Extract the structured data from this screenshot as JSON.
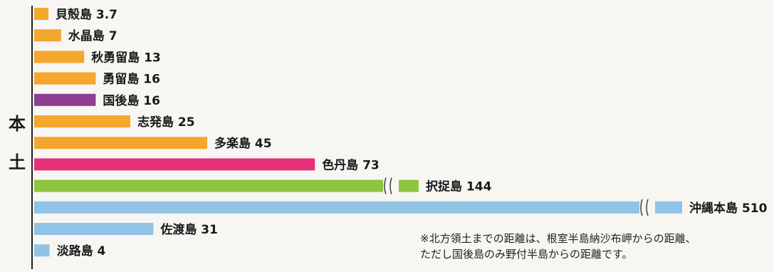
{
  "chart_data": {
    "type": "bar",
    "orientation": "horizontal",
    "axis_label": [
      "本",
      "土"
    ],
    "categories": [
      "貝殻島",
      "水晶島",
      "秋勇留島",
      "勇留島",
      "国後島",
      "志発島",
      "多楽島",
      "色丹島",
      "択捉島",
      "沖縄本島",
      "佐渡島",
      "淡路島"
    ],
    "values": [
      3.7,
      7,
      13,
      16,
      16,
      25,
      45,
      73,
      144,
      510,
      31,
      4
    ],
    "value_labels": [
      "3.7",
      "7",
      "13",
      "16",
      "16",
      "25",
      "45",
      "73",
      "144",
      "510",
      "31",
      "4"
    ],
    "colors": [
      "#f3a72c",
      "#f3a72c",
      "#f3a72c",
      "#f3a72c",
      "#8e3d8f",
      "#f3a72c",
      "#f3a72c",
      "#e6317a",
      "#8cc63f",
      "#90c3e6",
      "#90c3e6",
      "#90c3e6"
    ],
    "broken_axis": [
      "択捉島",
      "沖縄本島"
    ],
    "note": [
      "※北方領土までの距離は、根室半島納沙布岬からの距離、",
      "ただし国後島のみ野付半島からの距離です。"
    ]
  }
}
